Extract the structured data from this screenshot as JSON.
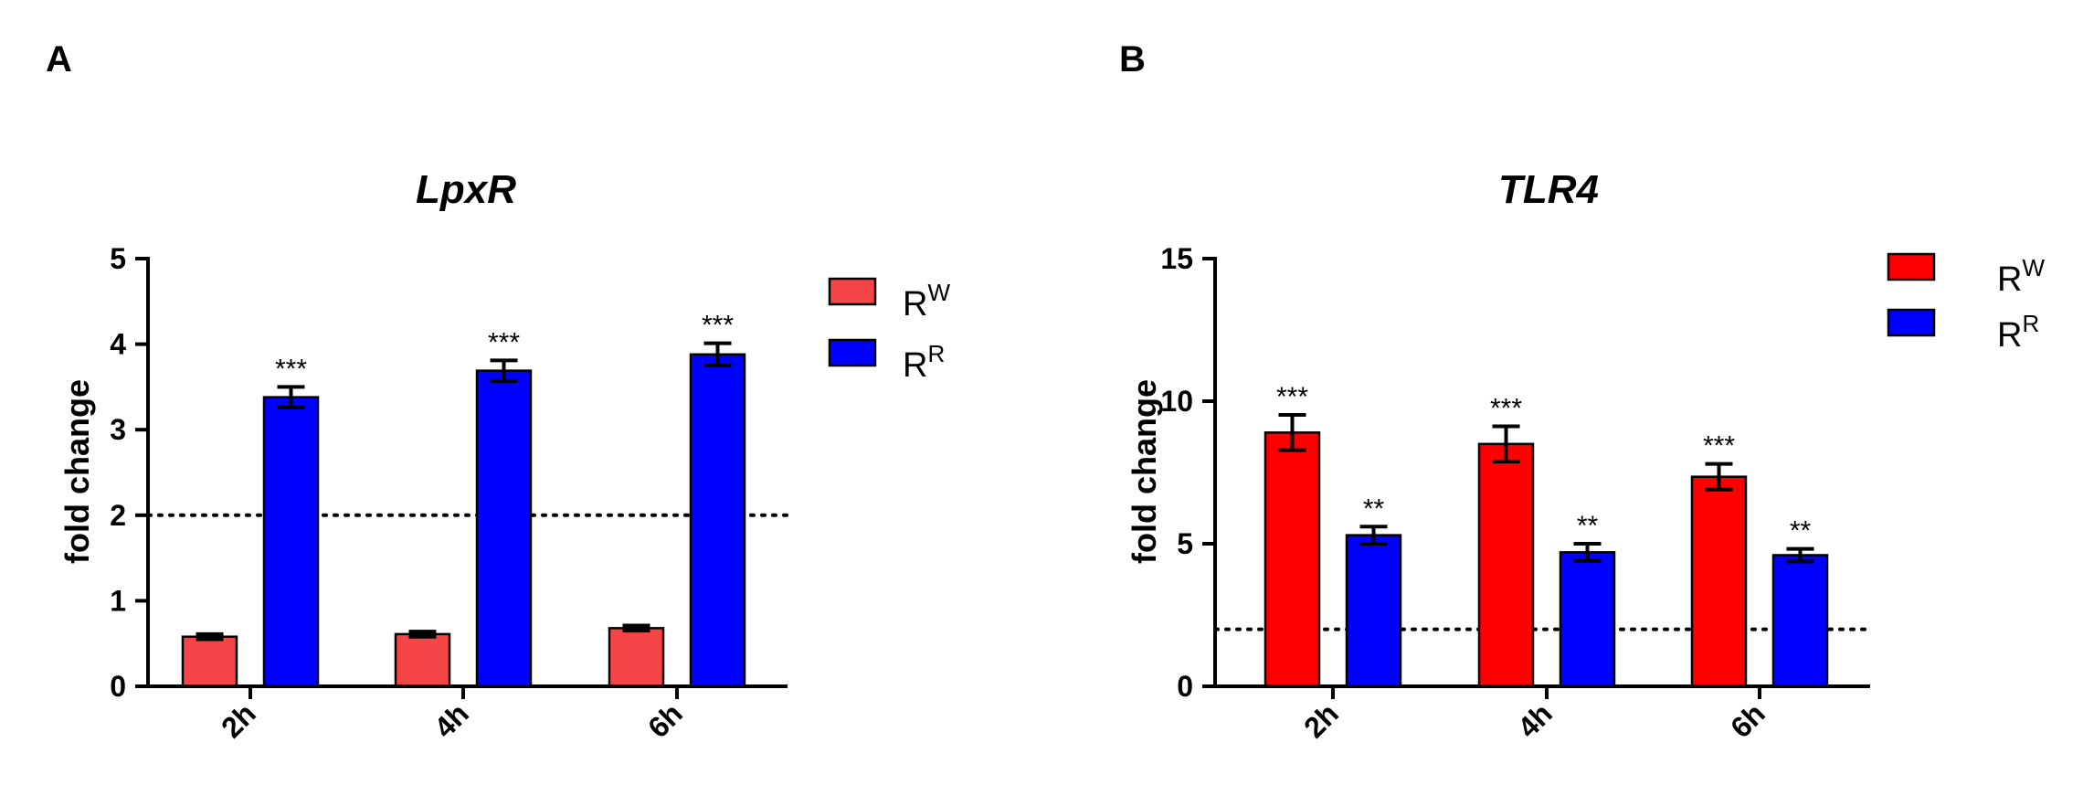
{
  "chart_data": [
    {
      "type": "bar",
      "panel_label": "A",
      "title": "LpxR",
      "xlabel": "",
      "ylabel": "fold change",
      "ylim": [
        0,
        5
      ],
      "yticks": [
        "0",
        "1",
        "2",
        "3",
        "4",
        "5"
      ],
      "categories": [
        "2h",
        "4h",
        "6h"
      ],
      "reference_line": 2,
      "series": [
        {
          "name": "R",
          "sup": "W",
          "color": "#f44646",
          "values": [
            0.58,
            0.61,
            0.68
          ],
          "errors": [
            0.03,
            0.03,
            0.03
          ],
          "significance": [
            "",
            "",
            ""
          ]
        },
        {
          "name": "R",
          "sup": "R",
          "color": "#0000ff",
          "values": [
            3.38,
            3.69,
            3.88
          ],
          "errors": [
            0.12,
            0.12,
            0.13
          ],
          "significance": [
            "***",
            "***",
            "***"
          ]
        }
      ]
    },
    {
      "type": "bar",
      "panel_label": "B",
      "title": "TLR4",
      "xlabel": "",
      "ylabel": "fold change",
      "ylim": [
        0,
        15
      ],
      "yticks": [
        "0",
        "5",
        "10",
        "15"
      ],
      "categories": [
        "2h",
        "4h",
        "6h"
      ],
      "reference_line": 2,
      "series": [
        {
          "name": "R",
          "sup": "W",
          "color": "#ff0000",
          "values": [
            8.9,
            8.5,
            7.35
          ],
          "errors": [
            0.62,
            0.62,
            0.45
          ],
          "significance": [
            "***",
            "***",
            "***"
          ]
        },
        {
          "name": "R",
          "sup": "R",
          "color": "#0000ff",
          "values": [
            5.3,
            4.7,
            4.6
          ],
          "errors": [
            0.3,
            0.3,
            0.22
          ],
          "significance": [
            "**",
            "**",
            "**"
          ]
        }
      ]
    }
  ]
}
